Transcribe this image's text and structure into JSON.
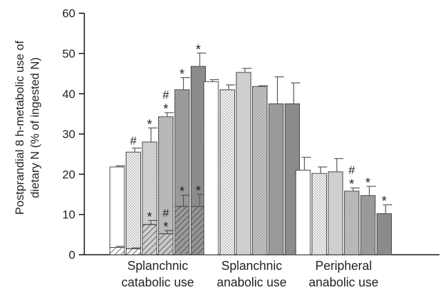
{
  "chart_data": {
    "type": "bar",
    "ylabel_line1": "Postprandial 8 h-metabolic use of",
    "ylabel_line2": "dietary N (% of ingested N)",
    "ylim": [
      0,
      60
    ],
    "yticks": [
      0,
      10,
      20,
      30,
      40,
      50,
      60
    ],
    "groups": [
      {
        "label_line1": "Splanchnic",
        "label_line2": "catabolic use"
      },
      {
        "label_line1": "Splanchnic",
        "label_line2": "anabolic use"
      },
      {
        "label_line1": "Peripheral",
        "label_line2": "anabolic use"
      }
    ],
    "series_styles": [
      {
        "fill": "#ffffff",
        "pattern": "none"
      },
      {
        "fill": "#f4f4f4",
        "pattern": "dots"
      },
      {
        "fill": "#cfcfcf",
        "pattern": "none"
      },
      {
        "fill": "#c8c8c8",
        "pattern": "dots"
      },
      {
        "fill": "#9a9a9a",
        "pattern": "none"
      },
      {
        "fill": "#949494",
        "pattern": "dots"
      }
    ],
    "bars": [
      [
        {
          "value": 21.8,
          "error": 0.3,
          "marks": []
        },
        {
          "value": 25.5,
          "error": 1.0,
          "marks": [
            "#"
          ]
        },
        {
          "value": 28.0,
          "error": 3.5,
          "marks": [
            "*"
          ]
        },
        {
          "value": 34.3,
          "error": 1.0,
          "marks": [
            "*",
            "#"
          ]
        },
        {
          "value": 41.0,
          "error": 3.0,
          "marks": [
            "*"
          ]
        },
        {
          "value": 46.8,
          "error": 3.3,
          "marks": [
            "*"
          ]
        }
      ],
      [
        {
          "value": 43.0,
          "error": 0.5,
          "marks": []
        },
        {
          "value": 41.0,
          "error": 1.2,
          "marks": []
        },
        {
          "value": 45.3,
          "error": 1.0,
          "marks": []
        },
        {
          "value": 41.8,
          "error": 0.2,
          "marks": []
        },
        {
          "value": 37.5,
          "error": 6.7,
          "marks": []
        },
        {
          "value": 37.5,
          "error": 5.2,
          "marks": []
        }
      ],
      [
        {
          "value": 21.0,
          "error": 3.2,
          "marks": []
        },
        {
          "value": 20.2,
          "error": 1.6,
          "marks": []
        },
        {
          "value": 20.6,
          "error": 3.3,
          "marks": []
        },
        {
          "value": 15.8,
          "error": 0.8,
          "marks": [
            "*",
            "#"
          ]
        },
        {
          "value": 14.7,
          "error": 2.3,
          "marks": [
            "*"
          ]
        },
        {
          "value": 10.2,
          "error": 2.2,
          "marks": [
            "*"
          ]
        }
      ]
    ],
    "inner_bars_group1": [
      {
        "value": 1.8,
        "error": 0.3,
        "marks": []
      },
      {
        "value": 1.5,
        "error": 0.2,
        "marks": []
      },
      {
        "value": 7.5,
        "error": 1.0,
        "marks": [
          "*"
        ]
      },
      {
        "value": 5.2,
        "error": 0.8,
        "marks": [
          "*",
          "#"
        ]
      },
      {
        "value": 12.0,
        "error": 2.8,
        "marks": [
          "*"
        ]
      },
      {
        "value": 12.0,
        "error": 3.0,
        "marks": [
          "*"
        ]
      }
    ]
  }
}
